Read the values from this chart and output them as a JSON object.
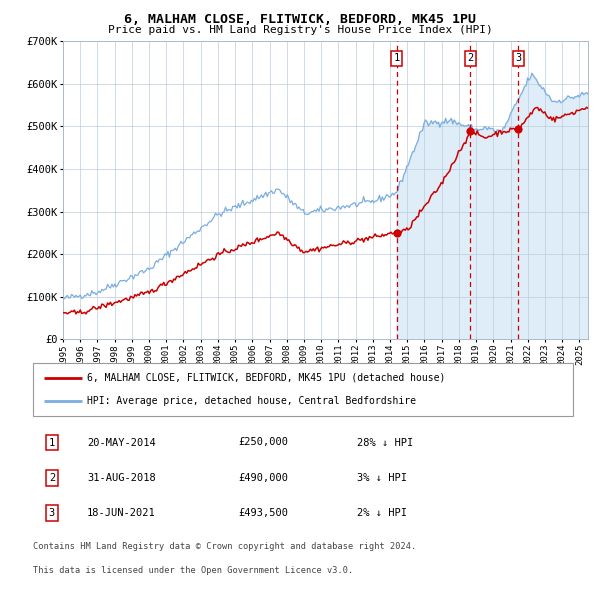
{
  "title_line1": "6, MALHAM CLOSE, FLITWICK, BEDFORD, MK45 1PU",
  "title_line2": "Price paid vs. HM Land Registry's House Price Index (HPI)",
  "legend_line1": "6, MALHAM CLOSE, FLITWICK, BEDFORD, MK45 1PU (detached house)",
  "legend_line2": "HPI: Average price, detached house, Central Bedfordshire",
  "transactions": [
    {
      "num": 1,
      "date": "20-MAY-2014",
      "price": 250000,
      "pct": "28%",
      "direction": "↓",
      "x_year": 2014.38
    },
    {
      "num": 2,
      "date": "31-AUG-2018",
      "price": 490000,
      "pct": "3%",
      "direction": "↓",
      "x_year": 2018.67
    },
    {
      "num": 3,
      "date": "18-JUN-2021",
      "price": 493500,
      "pct": "2%",
      "direction": "↓",
      "x_year": 2021.46
    }
  ],
  "hpi_color": "#7aade0",
  "hpi_fill_color": "#daeaf7",
  "price_color": "#cc0000",
  "marker_color": "#cc0000",
  "vline_color": "#cc0000",
  "box_edgecolor": "#cc0000",
  "grid_color": "#bbccdd",
  "background_color": "#ffffff",
  "footer_text1": "Contains HM Land Registry data © Crown copyright and database right 2024.",
  "footer_text2": "This data is licensed under the Open Government Licence v3.0.",
  "ylim": [
    0,
    700000
  ],
  "xlim_start": 1995.0,
  "xlim_end": 2025.5,
  "shade_start": 2014.38,
  "shade_end": 2025.5,
  "yticks": [
    0,
    100000,
    200000,
    300000,
    400000,
    500000,
    600000,
    700000
  ],
  "xtick_years": [
    1995,
    1996,
    1997,
    1998,
    1999,
    2000,
    2001,
    2002,
    2003,
    2004,
    2005,
    2006,
    2007,
    2008,
    2009,
    2010,
    2011,
    2012,
    2013,
    2014,
    2015,
    2016,
    2017,
    2018,
    2019,
    2020,
    2021,
    2022,
    2023,
    2024,
    2025
  ]
}
